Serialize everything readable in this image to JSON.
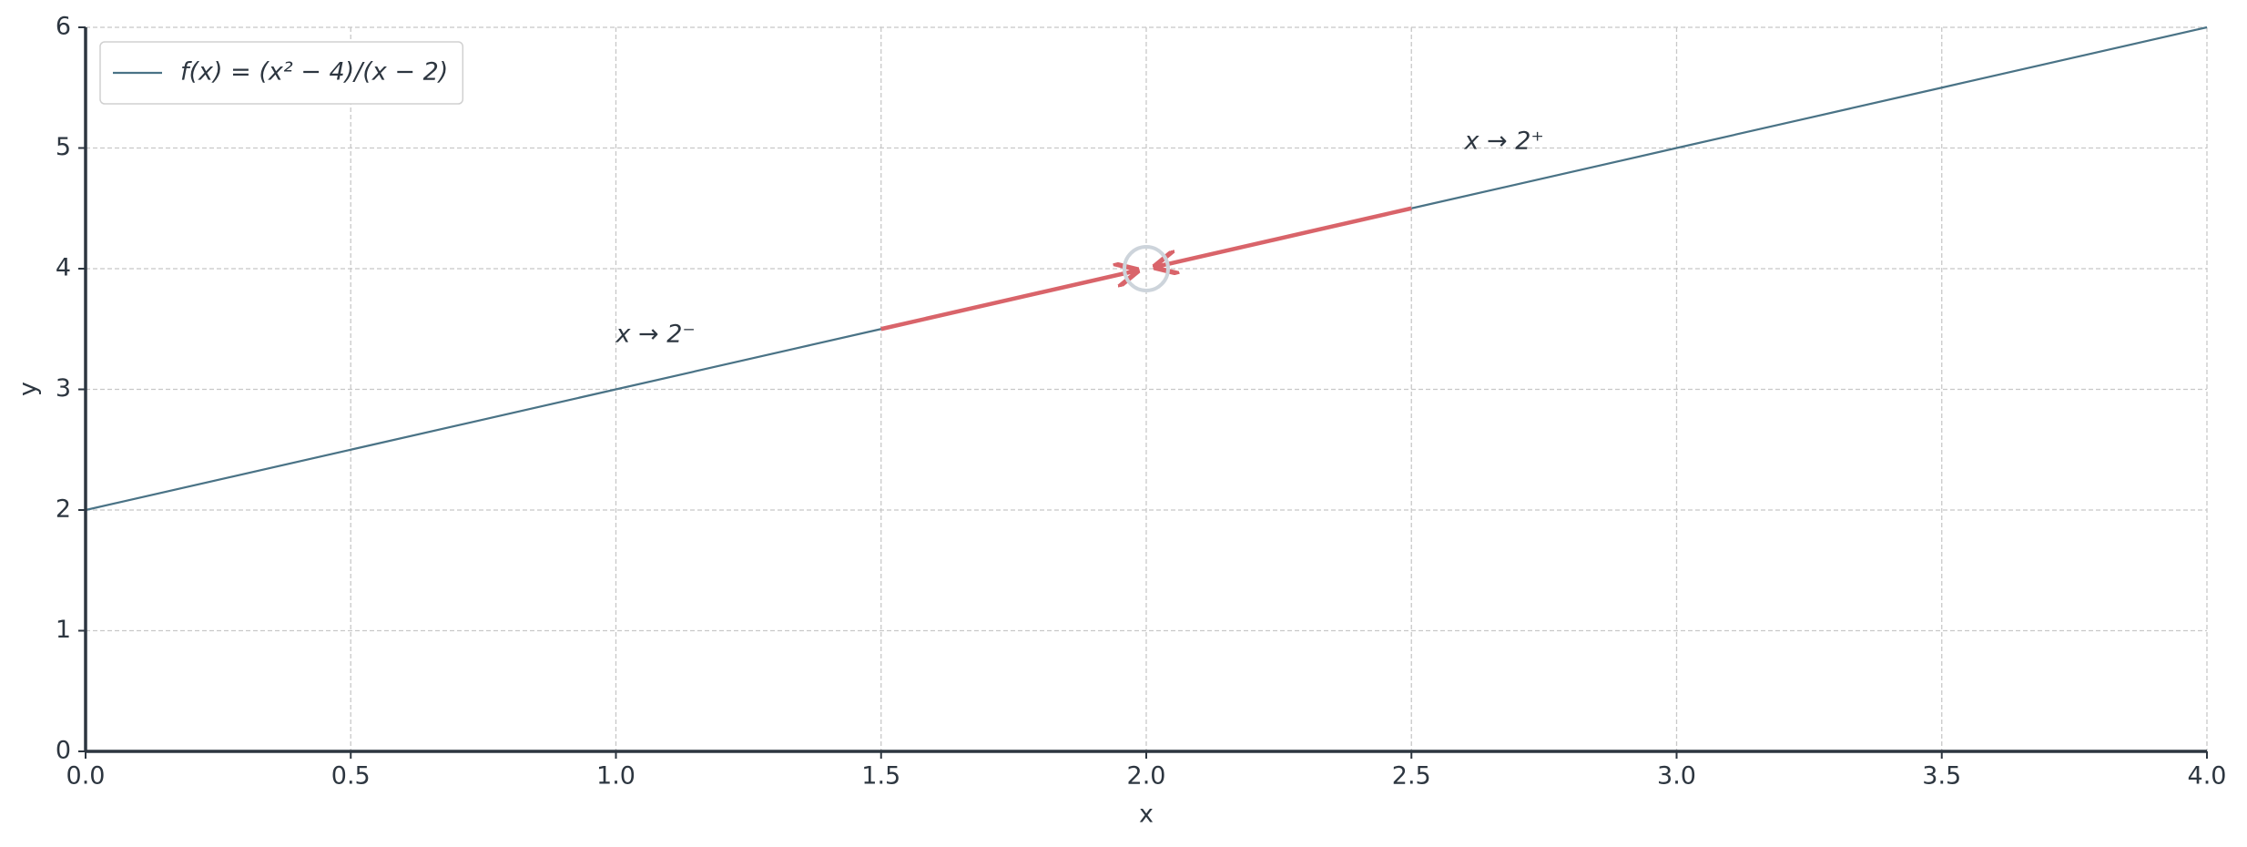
{
  "chart_data": {
    "type": "line",
    "x": [
      0,
      0.5,
      1,
      1.5,
      2,
      2.5,
      3,
      3.5,
      4
    ],
    "series": [
      {
        "name": "f(x) = (x² − 4)/(x − 2)",
        "color": "#4a7386",
        "values": [
          2,
          2.5,
          3,
          3.5,
          null,
          4.5,
          5,
          5.5,
          6
        ]
      }
    ],
    "xlabel": "x",
    "ylabel": "y",
    "xlim": [
      0,
      4
    ],
    "ylim": [
      0,
      6
    ],
    "xticks": [
      {
        "value": 0,
        "label": "0.0"
      },
      {
        "value": 0.5,
        "label": "0.5"
      },
      {
        "value": 1,
        "label": "1.0"
      },
      {
        "value": 1.5,
        "label": "1.5"
      },
      {
        "value": 2,
        "label": "2.0"
      },
      {
        "value": 2.5,
        "label": "2.5"
      },
      {
        "value": 3,
        "label": "3.0"
      },
      {
        "value": 3.5,
        "label": "3.5"
      },
      {
        "value": 4,
        "label": "4.0"
      }
    ],
    "yticks": [
      0,
      1,
      2,
      3,
      4,
      5,
      6
    ],
    "grid": true,
    "legend": "upper left",
    "arrows": [
      {
        "from": [
          1.5,
          3.5
        ],
        "to": [
          2,
          4
        ],
        "color": "#d9646a"
      },
      {
        "from": [
          2.5,
          4.5
        ],
        "to": [
          2,
          4
        ],
        "color": "#d9646a"
      }
    ],
    "hole": {
      "x": 2,
      "y": 4,
      "color": "#cdd4db"
    },
    "annotations": [
      {
        "text": "x → 2⁻",
        "x": 1.0,
        "y": 3.45,
        "color": "#d9646a"
      },
      {
        "text": "x → 2⁺",
        "x": 2.6,
        "y": 5.05,
        "color": "#d9646a"
      }
    ]
  }
}
